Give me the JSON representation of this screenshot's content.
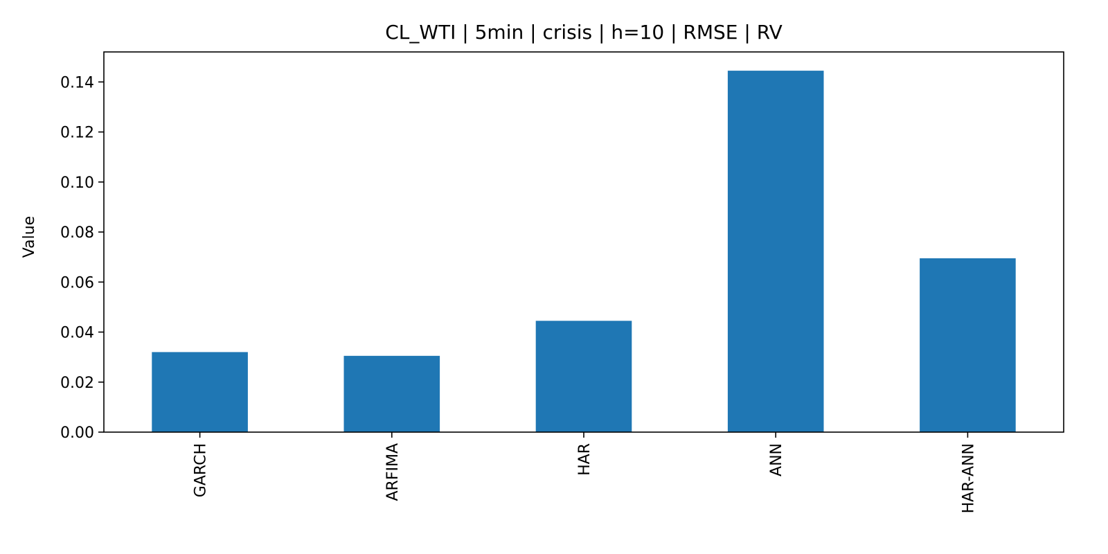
{
  "chart_data": {
    "type": "bar",
    "title": "CL_WTI | 5min | crisis | h=10 | RMSE | RV",
    "xlabel": "",
    "ylabel": "Value",
    "categories": [
      "GARCH",
      "ARFIMA",
      "HAR",
      "ANN",
      "HAR-ANN"
    ],
    "values": [
      0.032,
      0.0305,
      0.0445,
      0.1445,
      0.0695
    ],
    "ylim": [
      0,
      0.152
    ],
    "yticks": [
      0.0,
      0.02,
      0.04,
      0.06,
      0.08,
      0.1,
      0.12,
      0.14
    ],
    "ytick_labels": [
      "0.00",
      "0.02",
      "0.04",
      "0.06",
      "0.08",
      "0.10",
      "0.12",
      "0.14"
    ],
    "bar_color": "#1f77b4",
    "grid": false,
    "legend": "none"
  }
}
